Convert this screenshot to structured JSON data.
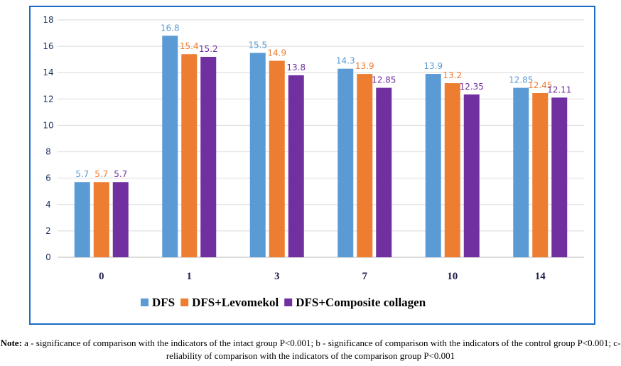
{
  "chart_data": {
    "type": "bar",
    "title": "",
    "xlabel": "",
    "ylabel": "",
    "categories": [
      "0",
      "1",
      "3",
      "7",
      "10",
      "14"
    ],
    "series": [
      {
        "name": "DFS",
        "color": "#5b9bd5",
        "values": [
          5.7,
          16.8,
          15.5,
          14.3,
          13.9,
          12.85
        ]
      },
      {
        "name": "DFS+Levomekol",
        "color": "#ed7d31",
        "values": [
          5.7,
          15.4,
          14.9,
          13.9,
          13.2,
          12.45
        ]
      },
      {
        "name": "DFS+Composite collagen",
        "color": "#7030a0",
        "values": [
          5.7,
          15.2,
          13.8,
          12.85,
          12.35,
          12.11
        ]
      }
    ],
    "data_labels": [
      [
        "5.7",
        "16.8",
        "15.5",
        "14.3",
        "13.9",
        "12.85"
      ],
      [
        "5.7",
        "15.4",
        "14.9",
        "13.9",
        "13.2",
        "12.45"
      ],
      [
        "5.7",
        "15.2",
        "13.8",
        "12.85",
        "12.35",
        "12.11"
      ]
    ],
    "ylim": [
      0,
      18
    ],
    "yticks": [
      "0",
      "2",
      "4",
      "6",
      "8",
      "10",
      "12",
      "14",
      "16",
      "18"
    ],
    "grid": true,
    "legend": "bottom",
    "frame_color": "#1a6fc4"
  },
  "note": {
    "label": "Note:",
    "text": " a - significance of comparison with the indicators of the intact group P<0.001; b - significance of comparison with the indicators of the control group P<0.001; c-reliability of comparison with the indicators of the comparison group P<0.001"
  }
}
